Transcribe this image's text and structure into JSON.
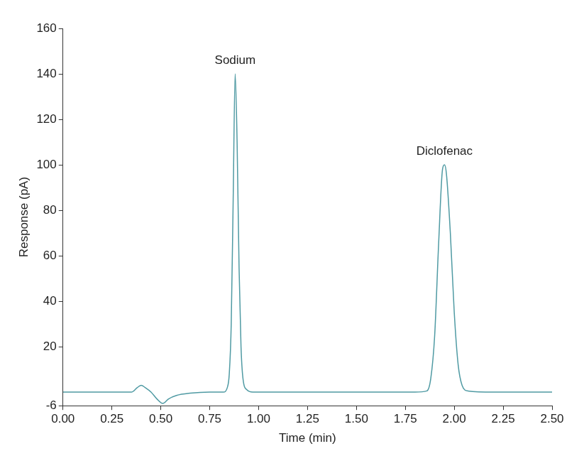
{
  "chart_data": {
    "type": "line",
    "x_label": "Time (min)",
    "y_label": "Response (pA)",
    "x": [
      0,
      0.35,
      0.38,
      0.4,
      0.42,
      0.45,
      0.48,
      0.51,
      0.54,
      0.58,
      0.65,
      0.75,
      0.82,
      0.84,
      0.85,
      0.86,
      0.87,
      0.88,
      0.89,
      0.9,
      0.91,
      0.92,
      0.94,
      0.97,
      1.2,
      1.5,
      1.8,
      1.86,
      1.88,
      1.9,
      1.92,
      1.94,
      1.95,
      1.96,
      1.98,
      2.0,
      2.02,
      2.04,
      2.07,
      2.2,
      2.5
    ],
    "values": [
      0,
      0,
      2,
      3,
      2,
      0,
      -3,
      -5,
      -3,
      -1.5,
      -0.5,
      0,
      0,
      2,
      8,
      30,
      85,
      140,
      110,
      55,
      20,
      6,
      1,
      0,
      0,
      0,
      0,
      0.5,
      6,
      25,
      65,
      98,
      100,
      96,
      70,
      35,
      12,
      3,
      0.5,
      0,
      0
    ],
    "color": "#4f9aa3",
    "xlim": [
      0,
      2.5
    ],
    "xticks": [
      {
        "value": 0,
        "label": "0.00"
      },
      {
        "value": 0.25,
        "label": "0.25"
      },
      {
        "value": 0.5,
        "label": "0.50"
      },
      {
        "value": 0.75,
        "label": "0.75"
      },
      {
        "value": 1,
        "label": "1.00"
      },
      {
        "value": 1.25,
        "label": "1.25"
      },
      {
        "value": 1.5,
        "label": "1.50"
      },
      {
        "value": 1.75,
        "label": "1.75"
      },
      {
        "value": 2,
        "label": "2.00"
      },
      {
        "value": 2.25,
        "label": "2.25"
      },
      {
        "value": 2.5,
        "label": "2.50"
      }
    ],
    "ylim": [
      -6,
      160
    ],
    "yticks": [
      -6,
      20,
      40,
      60,
      80,
      100,
      120,
      140,
      160
    ],
    "grid": false,
    "annotations": [
      {
        "text": "Sodium",
        "x": 0.88
      },
      {
        "text": "Diclofenac",
        "x": 1.95
      }
    ]
  }
}
